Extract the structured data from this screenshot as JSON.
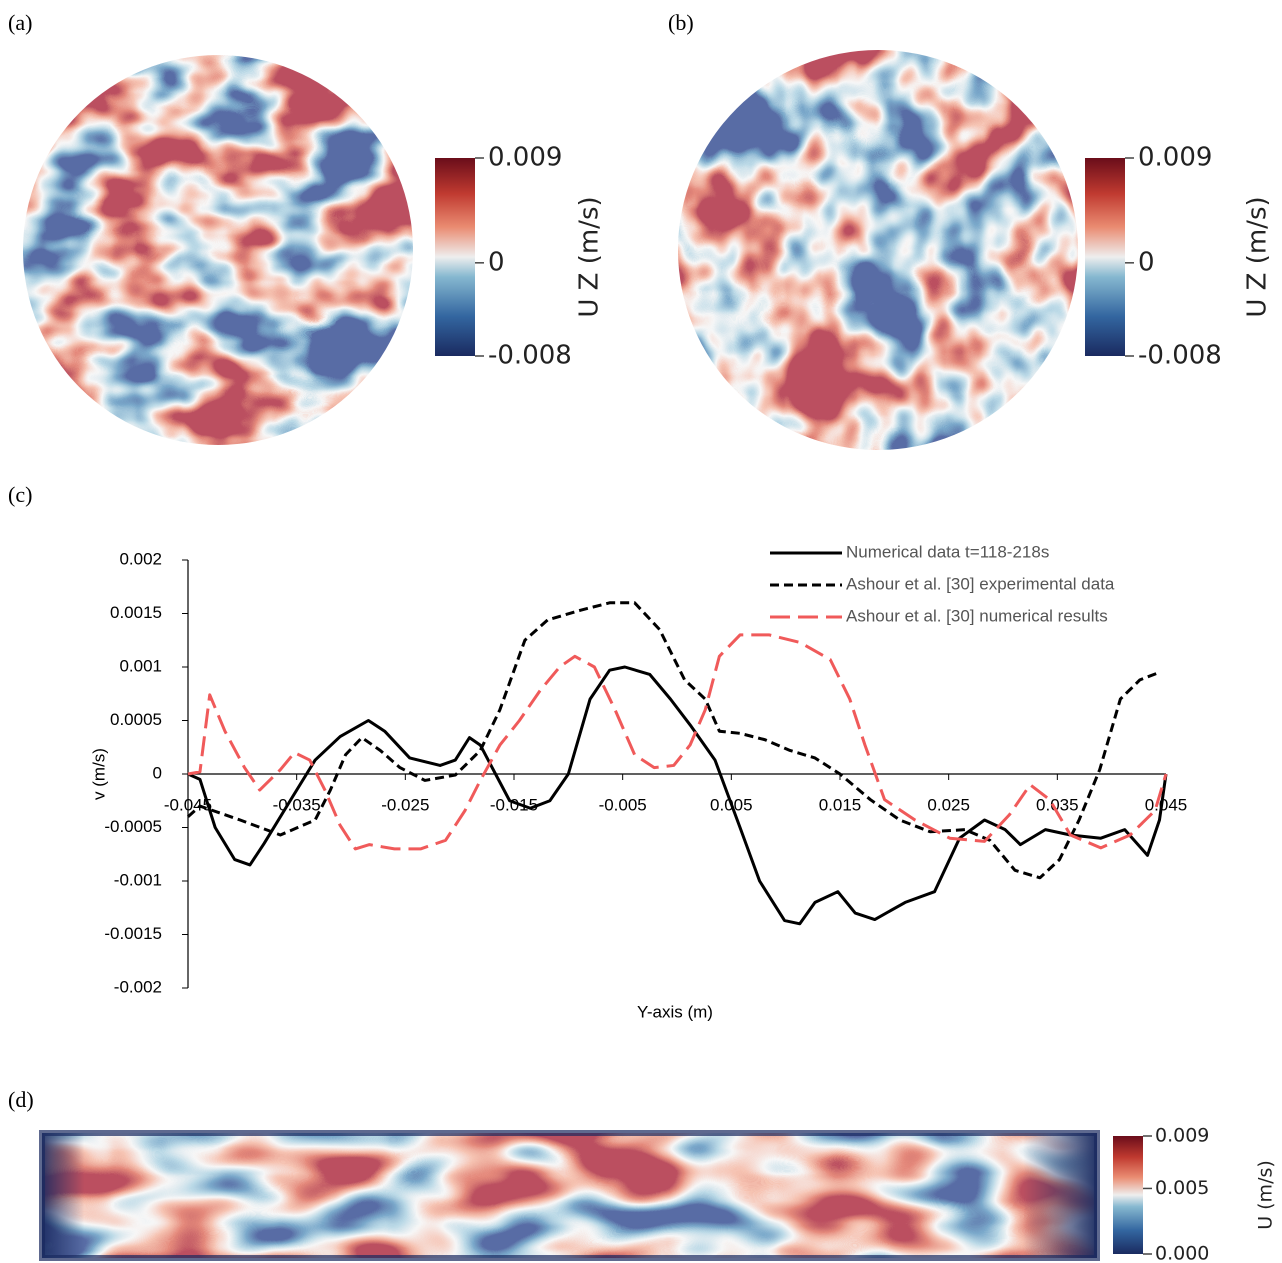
{
  "panels": {
    "a": {
      "label": "(a)",
      "colorbar": {
        "label": "U Z (m/s)",
        "range": [
          -0.008,
          0.009
        ],
        "ticks": [
          0.009,
          0,
          -0.008
        ]
      }
    },
    "b": {
      "label": "(b)",
      "colorbar": {
        "label": "U Z (m/s)",
        "range": [
          -0.008,
          0.009
        ],
        "ticks": [
          0.009,
          0,
          -0.008
        ]
      }
    },
    "c": {
      "label": "(c)"
    },
    "d": {
      "label": "(d)",
      "colorbar": {
        "label": "U (m/s)",
        "range": [
          0,
          0.009
        ],
        "ticks": [
          0.009,
          0.005,
          {
            "value": 0,
            "label": "0.000"
          }
        ]
      }
    }
  },
  "chart_data": {
    "type": "line",
    "x_label": "Y-axis (m)",
    "y_label": "v (m/s)",
    "xlim": [
      -0.045,
      0.045
    ],
    "xticks": [
      -0.045,
      -0.035,
      -0.025,
      -0.015,
      -0.005,
      0.005,
      0.015,
      0.025,
      0.035,
      0.045
    ],
    "ylim": [
      -0.002,
      0.002
    ],
    "yticks": [
      -0.002,
      -0.0015,
      -0.001,
      -0.0005,
      0,
      0.0005,
      0.001,
      0.0015,
      0.002
    ],
    "legend": "top-right",
    "series": [
      {
        "name": "Numerical data t=118-218s",
        "color": "#000000",
        "dash": "solid",
        "x": [
          -0.045,
          -0.0439,
          -0.0425,
          -0.0407,
          -0.0393,
          -0.038,
          -0.0356,
          -0.0333,
          -0.031,
          -0.0284,
          -0.0269,
          -0.0246,
          -0.0218,
          -0.0204,
          -0.0191,
          -0.0181,
          -0.0167,
          -0.0154,
          -0.0135,
          -0.0117,
          -0.01,
          -0.008,
          -0.0062,
          -0.0048,
          -0.0025,
          -0.0006,
          0.0012,
          0.0035,
          0.0058,
          0.0076,
          0.0099,
          0.0113,
          0.0127,
          0.0148,
          0.0164,
          0.0182,
          0.021,
          0.0237,
          0.026,
          0.0283,
          0.0302,
          0.0316,
          0.0339,
          0.0362,
          0.039,
          0.0412,
          0.0433,
          0.0444,
          0.045
        ],
        "values": [
          0,
          -5e-05,
          -0.0005,
          -0.0008,
          -0.00085,
          -0.00065,
          -0.00025,
          0.00013,
          0.00035,
          0.0005,
          0.0004,
          0.00015,
          8e-05,
          0.00013,
          0.00034,
          0.00027,
          0,
          -0.00025,
          -0.00032,
          -0.00025,
          0,
          0.0007,
          0.00097,
          0.001,
          0.00093,
          0.0007,
          0.00046,
          0.00013,
          -0.0005,
          -0.001,
          -0.00137,
          -0.0014,
          -0.0012,
          -0.0011,
          -0.0013,
          -0.00136,
          -0.0012,
          -0.0011,
          -0.0006,
          -0.00043,
          -0.00052,
          -0.00066,
          -0.00052,
          -0.00057,
          -0.0006,
          -0.00052,
          -0.00076,
          -0.00043,
          0
        ]
      },
      {
        "name": "Ashour et al. [30] experimental data",
        "color": "#000000",
        "dash": "short",
        "x": [
          -0.045,
          -0.0439,
          -0.0402,
          -0.0365,
          -0.0333,
          -0.0319,
          -0.0305,
          -0.029,
          -0.0273,
          -0.0255,
          -0.0232,
          -0.0204,
          -0.0181,
          -0.0163,
          -0.014,
          -0.0119,
          -0.0089,
          -0.0062,
          -0.0039,
          -0.0016,
          0.0007,
          0.0026,
          0.0039,
          0.0058,
          0.0081,
          0.0104,
          0.0127,
          0.015,
          0.0178,
          0.0205,
          0.0233,
          0.0265,
          0.0288,
          0.0311,
          0.0334,
          0.0352,
          0.037,
          0.0389,
          0.0408,
          0.0426,
          0.0444
        ],
        "values": [
          -0.0004,
          -0.0003,
          -0.00043,
          -0.00057,
          -0.00043,
          -0.00015,
          0.00018,
          0.00034,
          0.00022,
          6e-05,
          -6e-05,
          -1e-05,
          0.00022,
          0.0006,
          0.00125,
          0.00144,
          0.00153,
          0.0016,
          0.0016,
          0.00135,
          0.00088,
          0.0007,
          0.0004,
          0.00038,
          0.00032,
          0.00022,
          0.00015,
          0,
          -0.00024,
          -0.00043,
          -0.00054,
          -0.00052,
          -0.00062,
          -0.0009,
          -0.00097,
          -0.0008,
          -0.00043,
          4e-05,
          0.0007,
          0.00088,
          0.00095
        ]
      },
      {
        "name": "Ashour et al. [30] numerical results",
        "color": "#f05a5a",
        "dash": "long",
        "x": [
          -0.045,
          -0.0439,
          -0.043,
          -0.0416,
          -0.0398,
          -0.0384,
          -0.0365,
          -0.0352,
          -0.0338,
          -0.0324,
          -0.031,
          -0.0296,
          -0.0283,
          -0.026,
          -0.0236,
          -0.0213,
          -0.0195,
          -0.0181,
          -0.0163,
          -0.0145,
          -0.0126,
          -0.0108,
          -0.0094,
          -0.0076,
          -0.0057,
          -0.0039,
          -0.0021,
          -0.0003,
          0.0012,
          0.0026,
          0.0039,
          0.0058,
          0.0085,
          0.0113,
          0.0141,
          0.0159,
          0.0173,
          0.0191,
          0.0219,
          0.0251,
          0.0283,
          0.0306,
          0.0325,
          0.0343,
          0.0362,
          0.039,
          0.0417,
          0.044,
          0.045
        ],
        "values": [
          0,
          2e-05,
          0.00074,
          0.0004,
          6e-05,
          -0.00015,
          4e-05,
          0.0002,
          0.00013,
          -0.00015,
          -0.00048,
          -0.0007,
          -0.00066,
          -0.0007,
          -0.0007,
          -0.00062,
          -0.00034,
          -6e-05,
          0.00027,
          0.0005,
          0.00078,
          0.001,
          0.0011,
          0.001,
          0.0006,
          0.00018,
          6e-05,
          8e-05,
          0.00027,
          0.0006,
          0.0011,
          0.0013,
          0.0013,
          0.00123,
          0.00107,
          0.0007,
          0.00027,
          -0.00024,
          -0.00043,
          -0.0006,
          -0.00063,
          -0.00038,
          -0.0001,
          -0.00024,
          -0.00057,
          -0.00069,
          -0.00057,
          -0.00034,
          0
        ]
      }
    ]
  }
}
